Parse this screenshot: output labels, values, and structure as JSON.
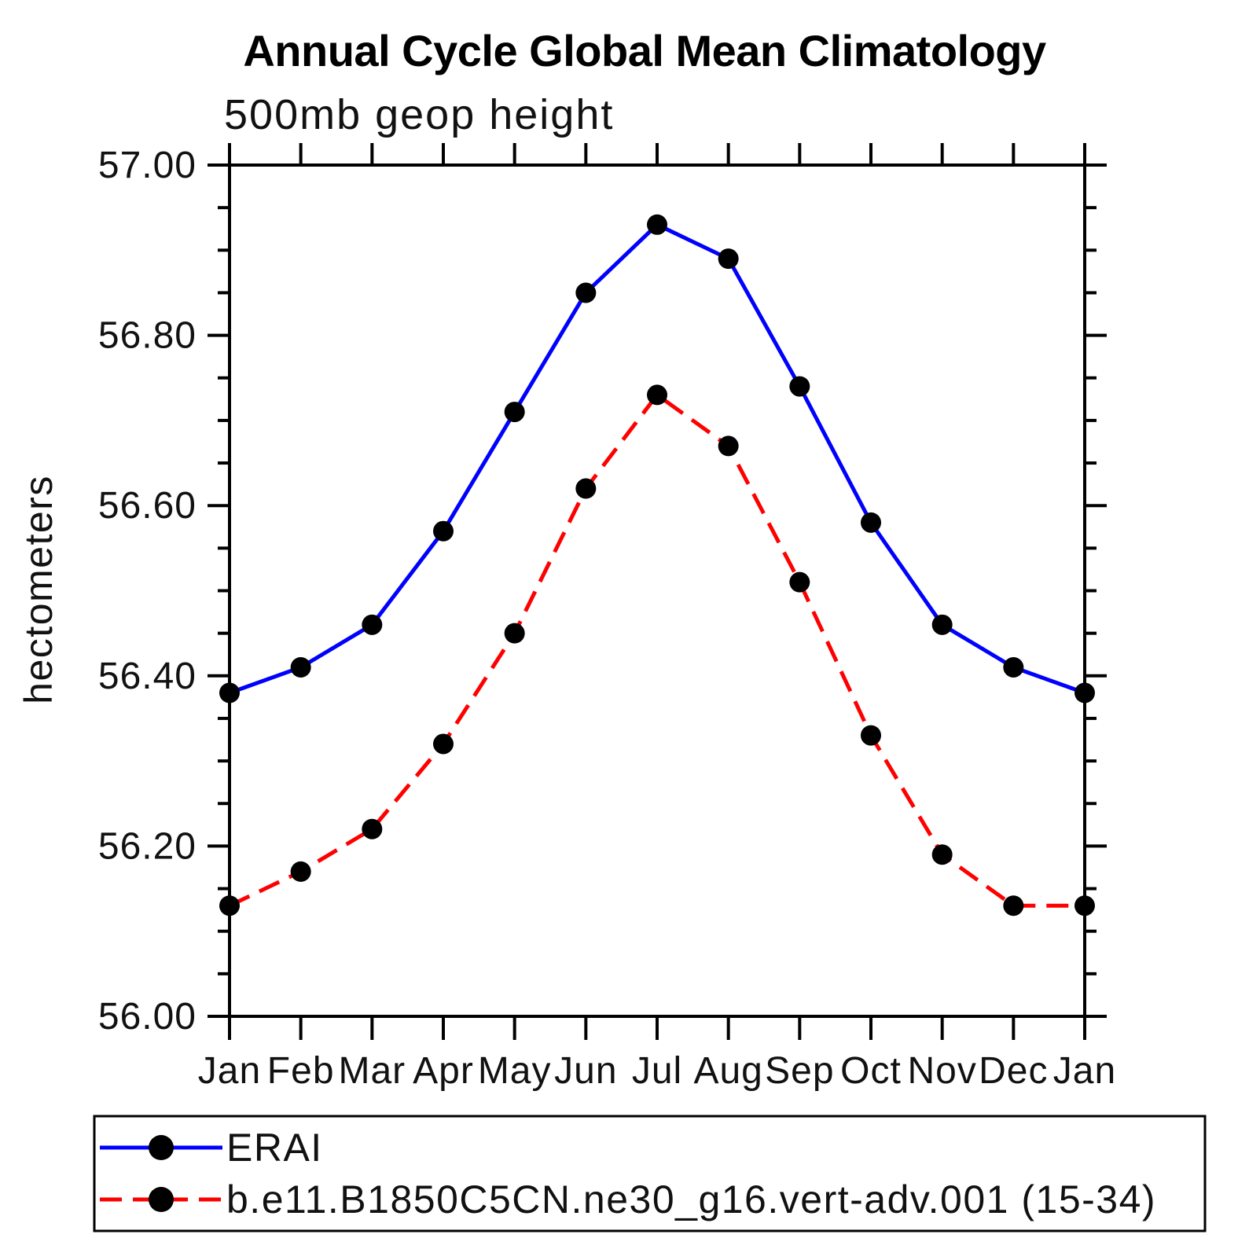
{
  "figure": {
    "title": "Annual Cycle Global Mean Climatology",
    "subtitle": "500mb geop height",
    "ylabel": "hectometers"
  },
  "colors": {
    "erai_line": "#0000ff",
    "model_line": "#ff0000",
    "marker": "#000000",
    "axis": "#000000",
    "background": "#ffffff"
  },
  "chart_data": {
    "type": "line",
    "title": "Annual Cycle Global Mean Climatology",
    "subtitle": "500mb geop height",
    "xlabel": "",
    "ylabel": "hectometers",
    "categories": [
      "Jan",
      "Feb",
      "Mar",
      "Apr",
      "May",
      "Jun",
      "Jul",
      "Aug",
      "Sep",
      "Oct",
      "Nov",
      "Dec",
      "Jan"
    ],
    "series": [
      {
        "id": "erai",
        "name": "ERAI",
        "color": "#0000ff",
        "line_style": "solid",
        "marker": "filled-circle",
        "values": [
          56.38,
          56.41,
          56.46,
          56.57,
          56.71,
          56.85,
          56.93,
          56.89,
          56.74,
          56.58,
          56.46,
          56.41,
          56.38
        ]
      },
      {
        "id": "model",
        "name": "b.e11.B1850C5CN.ne30_g16.vert-adv.001 (15-34)",
        "color": "#ff0000",
        "line_style": "dashed",
        "marker": "filled-circle",
        "values": [
          56.13,
          56.17,
          56.22,
          56.32,
          56.45,
          56.62,
          56.73,
          56.67,
          56.51,
          56.33,
          56.19,
          56.13,
          56.13
        ]
      }
    ],
    "ylim": [
      56.0,
      57.0
    ],
    "ytick_major_step": 0.2,
    "ytick_minor_step": 0.05,
    "ytick_labels": [
      "56.00",
      "56.20",
      "56.40",
      "56.60",
      "56.80",
      "57.00"
    ],
    "grid": false,
    "frame": "box-with-outward-ticks",
    "legend_position": "bottom-left-box"
  }
}
